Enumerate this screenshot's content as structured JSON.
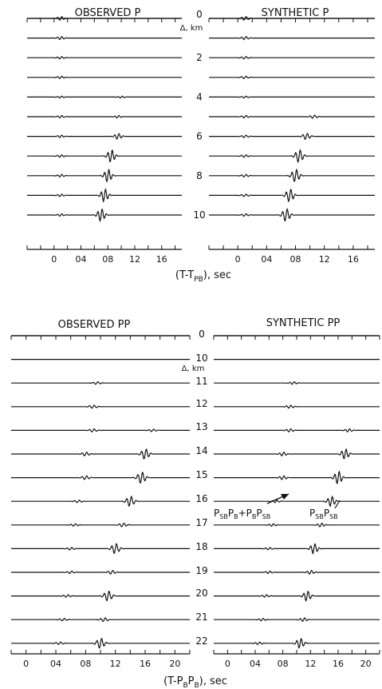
{
  "chart_data": [
    {
      "type": "line",
      "title_left": "OBSERVED P",
      "title_right": "SYNTHETIC P",
      "xlabel_main": "(T-T",
      "xlabel_sub": "PB",
      "xlabel_end": "), sec",
      "xlim": [
        -0.4,
        1.9
      ],
      "tick_labels": [
        "0",
        "04",
        "08",
        "12",
        "16"
      ],
      "tick_values": [
        0,
        0.4,
        0.8,
        1.2,
        1.6
      ],
      "delta_unit": "Δ, km",
      "distance_labels": [
        "0",
        "2",
        "4",
        "6",
        "8",
        "10"
      ],
      "trace_count": 11,
      "observed_pulses": [
        [
          [
            0.1,
            0.3
          ]
        ],
        [
          [
            0.1,
            0.25
          ]
        ],
        [
          [
            0.1,
            0.2
          ]
        ],
        [
          [
            0.1,
            0.2
          ]
        ],
        [
          [
            0.1,
            0.15
          ],
          [
            1.0,
            0.15
          ]
        ],
        [
          [
            0.1,
            0.2
          ],
          [
            0.95,
            0.2
          ]
        ],
        [
          [
            0.1,
            0.2
          ],
          [
            0.95,
            0.45
          ]
        ],
        [
          [
            0.1,
            0.2
          ],
          [
            0.85,
            1.0
          ]
        ],
        [
          [
            0.1,
            0.2
          ],
          [
            0.8,
            1.0
          ]
        ],
        [
          [
            0.1,
            0.2
          ],
          [
            0.75,
            1.0
          ]
        ],
        [
          [
            0.1,
            0.2
          ],
          [
            0.7,
            1.0
          ]
        ]
      ],
      "synthetic_pulses": [
        [
          [
            0.1,
            0.3
          ]
        ],
        [
          [
            0.1,
            0.25
          ]
        ],
        [
          [
            0.1,
            0.2
          ]
        ],
        [
          [
            0.1,
            0.2
          ]
        ],
        [
          [
            0.1,
            0.15
          ]
        ],
        [
          [
            0.1,
            0.2
          ],
          [
            1.05,
            0.25
          ]
        ],
        [
          [
            0.1,
            0.2
          ],
          [
            0.95,
            0.5
          ]
        ],
        [
          [
            0.1,
            0.2
          ],
          [
            0.85,
            1.0
          ]
        ],
        [
          [
            0.1,
            0.2
          ],
          [
            0.8,
            1.0
          ]
        ],
        [
          [
            0.1,
            0.2
          ],
          [
            0.72,
            1.0
          ]
        ],
        [
          [
            0.1,
            0.2
          ],
          [
            0.67,
            1.0
          ]
        ]
      ]
    },
    {
      "type": "line",
      "title_left": "OBSERVED PP",
      "title_right": "SYNTHETIC PP",
      "xlabel_main": "(T-P",
      "xlabel_sub1": "B",
      "xlabel_mid": "P",
      "xlabel_sub2": "B",
      "xlabel_end": "), sec",
      "xlim": [
        -0.2,
        2.2
      ],
      "tick_labels": [
        "0",
        "04",
        "08",
        "12",
        "16",
        "20"
      ],
      "tick_values": [
        0,
        0.4,
        0.8,
        1.2,
        1.6,
        2.0
      ],
      "delta_unit": "Δ, km",
      "distance_labels": [
        "0",
        "10",
        "11",
        "12",
        "13",
        "14",
        "15",
        "16",
        "17",
        "18",
        "19",
        "20",
        "21",
        "22"
      ],
      "trace_count": 14,
      "annotation_1": "P<sub>SB</sub>P<sub>B</sub>+P<sub>B</sub>P<sub>SB</sub>",
      "annotation_2": "P<sub>SB</sub>P<sub>SB</sub>",
      "observed_pulses": [
        [],
        [],
        [
          [
            0.95,
            0.2
          ]
        ],
        [
          [
            0.9,
            0.25
          ]
        ],
        [
          [
            0.9,
            0.25
          ],
          [
            1.7,
            0.2
          ]
        ],
        [
          [
            0.8,
            0.3
          ],
          [
            1.6,
            0.8
          ]
        ],
        [
          [
            0.8,
            0.3
          ],
          [
            1.55,
            0.9
          ]
        ],
        [
          [
            0.7,
            0.2
          ],
          [
            1.4,
            0.8
          ]
        ],
        [
          [
            0.65,
            0.2
          ],
          [
            1.3,
            0.3
          ]
        ],
        [
          [
            0.6,
            0.2
          ],
          [
            1.2,
            0.8
          ]
        ],
        [
          [
            0.6,
            0.2
          ],
          [
            1.15,
            0.3
          ]
        ],
        [
          [
            0.55,
            0.2
          ],
          [
            1.1,
            0.8
          ]
        ],
        [
          [
            0.5,
            0.2
          ],
          [
            1.05,
            0.3
          ]
        ],
        [
          [
            0.45,
            0.2
          ],
          [
            1.0,
            0.8
          ]
        ]
      ],
      "synthetic_pulses": [
        [],
        [],
        [
          [
            0.95,
            0.2
          ]
        ],
        [
          [
            0.9,
            0.25
          ]
        ],
        [
          [
            0.9,
            0.25
          ],
          [
            1.75,
            0.25
          ]
        ],
        [
          [
            0.8,
            0.3
          ],
          [
            1.7,
            0.8
          ]
        ],
        [
          [
            0.8,
            0.3
          ],
          [
            1.6,
            1.0
          ]
        ],
        [
          [
            0.7,
            0.2
          ],
          [
            1.5,
            0.8
          ]
        ],
        [
          [
            0.65,
            0.2
          ],
          [
            1.35,
            0.3
          ]
        ],
        [
          [
            0.6,
            0.2
          ],
          [
            1.25,
            0.8
          ]
        ],
        [
          [
            0.6,
            0.2
          ],
          [
            1.2,
            0.3
          ]
        ],
        [
          [
            0.55,
            0.2
          ],
          [
            1.15,
            0.8
          ]
        ],
        [
          [
            0.5,
            0.2
          ],
          [
            1.1,
            0.3
          ]
        ],
        [
          [
            0.45,
            0.2
          ],
          [
            1.05,
            0.8
          ]
        ]
      ]
    }
  ]
}
